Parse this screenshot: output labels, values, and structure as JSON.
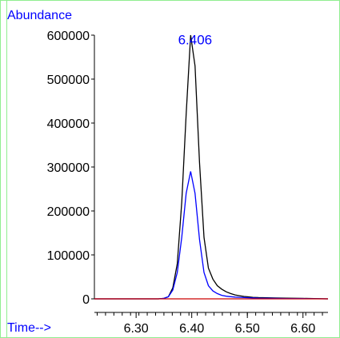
{
  "chart_data": {
    "type": "line",
    "ylabel": "Abundance",
    "xlabel": "Time-->",
    "xlim": [
      6.225,
      6.645
    ],
    "ylim": [
      0,
      600000
    ],
    "x_ticks": [
      6.3,
      6.4,
      6.5,
      6.6
    ],
    "x_tick_labels": [
      "6.30",
      "6.40",
      "6.50",
      "6.60"
    ],
    "y_ticks": [
      0,
      100000,
      200000,
      300000,
      400000,
      500000,
      600000
    ],
    "y_tick_labels": [
      "0",
      "100000",
      "200000",
      "300000",
      "400000",
      "500000",
      "600000"
    ],
    "peak_label": {
      "text": "6.406",
      "x": 6.406,
      "y": 590000
    },
    "grid": false,
    "colors": {
      "frame": "#90ee90",
      "black_series": "#000000",
      "blue_series": "#0000ff",
      "red_series": "#cc0000",
      "axis_text": "#000000",
      "label_text": "#0000ff"
    },
    "series": [
      {
        "color": "#000000",
        "x": [
          6.225,
          6.34,
          6.35,
          6.358,
          6.366,
          6.374,
          6.382,
          6.39,
          6.398,
          6.406,
          6.414,
          6.422,
          6.43,
          6.438,
          6.446,
          6.454,
          6.462,
          6.47,
          6.478,
          6.486,
          6.494,
          6.502,
          6.51,
          6.52,
          6.535,
          6.55,
          6.57,
          6.6,
          6.645
        ],
        "y": [
          0,
          0,
          1000,
          5000,
          25000,
          80000,
          220000,
          420000,
          600000,
          530000,
          310000,
          140000,
          70000,
          45000,
          30000,
          22000,
          16000,
          12000,
          9000,
          7000,
          5500,
          4500,
          3500,
          3000,
          2500,
          2000,
          1500,
          1000,
          0
        ]
      },
      {
        "color": "#0000ff",
        "x": [
          6.225,
          6.34,
          6.35,
          6.358,
          6.366,
          6.374,
          6.382,
          6.39,
          6.398,
          6.406,
          6.414,
          6.422,
          6.43,
          6.438,
          6.446,
          6.454,
          6.462,
          6.47,
          6.478,
          6.486,
          6.494,
          6.502,
          6.51,
          6.52,
          6.535,
          6.55,
          6.57,
          6.6,
          6.645
        ],
        "y": [
          0,
          0,
          1000,
          5000,
          20000,
          60000,
          140000,
          240000,
          290000,
          240000,
          135000,
          60000,
          30000,
          18000,
          12000,
          8000,
          6000,
          5000,
          4000,
          3500,
          3000,
          2500,
          2000,
          1500,
          1200,
          1000,
          800,
          500,
          0
        ]
      },
      {
        "color": "#cc0000",
        "x": [
          6.225,
          6.645
        ],
        "y": [
          0,
          0
        ]
      }
    ]
  }
}
